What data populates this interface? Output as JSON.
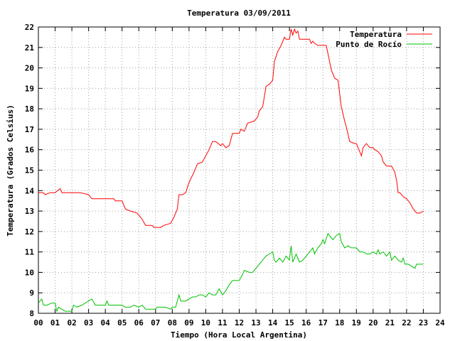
{
  "chart_data": {
    "type": "line",
    "title": "Temperatura 03/09/2011",
    "xlabel": "Tiempo (Hora Local Argentina)",
    "ylabel": "Temperatura (Grados Celsius)",
    "xlim": [
      0,
      24
    ],
    "ylim": [
      8,
      22
    ],
    "x_ticks": [
      0,
      1,
      2,
      3,
      4,
      5,
      6,
      7,
      8,
      9,
      10,
      11,
      12,
      13,
      14,
      15,
      16,
      17,
      18,
      19,
      20,
      21,
      22,
      23,
      24
    ],
    "x_tick_labels": [
      "00",
      "01",
      "02",
      "03",
      "04",
      "05",
      "06",
      "07",
      "08",
      "09",
      "10",
      "11",
      "12",
      "13",
      "14",
      "15",
      "16",
      "17",
      "18",
      "19",
      "20",
      "21",
      "22",
      "23",
      "24"
    ],
    "y_ticks": [
      8,
      9,
      10,
      11,
      12,
      13,
      14,
      15,
      16,
      17,
      18,
      19,
      20,
      21,
      22
    ],
    "grid": true,
    "legend_position": "top-right",
    "series": [
      {
        "name": "Temperatura",
        "color": "#ff0000",
        "points": [
          [
            0.0,
            13.9
          ],
          [
            0.3,
            13.9
          ],
          [
            0.4,
            13.8
          ],
          [
            0.7,
            13.9
          ],
          [
            1.0,
            13.9
          ],
          [
            1.3,
            14.1
          ],
          [
            1.4,
            13.9
          ],
          [
            2.0,
            13.9
          ],
          [
            2.5,
            13.9
          ],
          [
            3.0,
            13.8
          ],
          [
            3.2,
            13.6
          ],
          [
            3.5,
            13.6
          ],
          [
            4.0,
            13.6
          ],
          [
            4.5,
            13.6
          ],
          [
            4.6,
            13.5
          ],
          [
            5.0,
            13.5
          ],
          [
            5.2,
            13.1
          ],
          [
            5.5,
            13.0
          ],
          [
            5.9,
            12.9
          ],
          [
            6.2,
            12.6
          ],
          [
            6.4,
            12.3
          ],
          [
            6.8,
            12.3
          ],
          [
            6.9,
            12.2
          ],
          [
            7.3,
            12.2
          ],
          [
            7.5,
            12.3
          ],
          [
            7.9,
            12.4
          ],
          [
            8.1,
            12.7
          ],
          [
            8.3,
            13.1
          ],
          [
            8.4,
            13.8
          ],
          [
            8.6,
            13.8
          ],
          [
            8.8,
            13.9
          ],
          [
            9.0,
            14.4
          ],
          [
            9.3,
            14.9
          ],
          [
            9.5,
            15.3
          ],
          [
            9.8,
            15.4
          ],
          [
            10.0,
            15.7
          ],
          [
            10.2,
            16.0
          ],
          [
            10.4,
            16.4
          ],
          [
            10.6,
            16.4
          ],
          [
            10.9,
            16.2
          ],
          [
            11.0,
            16.3
          ],
          [
            11.2,
            16.1
          ],
          [
            11.4,
            16.2
          ],
          [
            11.6,
            16.8
          ],
          [
            12.0,
            16.8
          ],
          [
            12.1,
            17.0
          ],
          [
            12.3,
            16.9
          ],
          [
            12.5,
            17.3
          ],
          [
            12.9,
            17.4
          ],
          [
            13.1,
            17.6
          ],
          [
            13.2,
            17.9
          ],
          [
            13.4,
            18.1
          ],
          [
            13.6,
            19.1
          ],
          [
            13.8,
            19.2
          ],
          [
            14.0,
            19.4
          ],
          [
            14.1,
            20.3
          ],
          [
            14.3,
            20.8
          ],
          [
            14.5,
            21.1
          ],
          [
            14.7,
            21.5
          ],
          [
            14.8,
            21.4
          ],
          [
            15.0,
            21.4
          ],
          [
            15.1,
            21.9
          ],
          [
            15.2,
            21.6
          ],
          [
            15.3,
            21.9
          ],
          [
            15.4,
            21.7
          ],
          [
            15.5,
            21.8
          ],
          [
            15.6,
            21.4
          ],
          [
            16.0,
            21.4
          ],
          [
            16.2,
            21.4
          ],
          [
            16.3,
            21.2
          ],
          [
            16.4,
            21.3
          ],
          [
            16.5,
            21.2
          ],
          [
            16.7,
            21.1
          ],
          [
            17.0,
            21.1
          ],
          [
            17.2,
            21.1
          ],
          [
            17.3,
            20.7
          ],
          [
            17.5,
            19.9
          ],
          [
            17.7,
            19.5
          ],
          [
            17.9,
            19.4
          ],
          [
            18.1,
            18.1
          ],
          [
            18.3,
            17.4
          ],
          [
            18.4,
            17.1
          ],
          [
            18.6,
            16.4
          ],
          [
            18.9,
            16.3
          ],
          [
            19.0,
            16.3
          ],
          [
            19.2,
            15.9
          ],
          [
            19.3,
            15.7
          ],
          [
            19.4,
            16.1
          ],
          [
            19.6,
            16.3
          ],
          [
            19.8,
            16.1
          ],
          [
            20.0,
            16.1
          ],
          [
            20.1,
            16.0
          ],
          [
            20.3,
            15.9
          ],
          [
            20.5,
            15.7
          ],
          [
            20.6,
            15.4
          ],
          [
            20.8,
            15.2
          ],
          [
            21.1,
            15.2
          ],
          [
            21.3,
            14.9
          ],
          [
            21.4,
            14.5
          ],
          [
            21.5,
            13.9
          ],
          [
            21.6,
            13.9
          ],
          [
            21.8,
            13.7
          ],
          [
            22.0,
            13.6
          ],
          [
            22.2,
            13.4
          ],
          [
            22.4,
            13.1
          ],
          [
            22.6,
            12.9
          ],
          [
            22.8,
            12.9
          ],
          [
            23.0,
            13.0
          ]
        ]
      },
      {
        "name": "Punto de Rocío",
        "color": "#00c000",
        "points": [
          [
            0.0,
            8.5
          ],
          [
            0.2,
            8.7
          ],
          [
            0.3,
            8.4
          ],
          [
            0.5,
            8.4
          ],
          [
            0.8,
            8.5
          ],
          [
            1.0,
            8.5
          ],
          [
            1.1,
            8.1
          ],
          [
            1.2,
            8.3
          ],
          [
            1.4,
            8.2
          ],
          [
            1.6,
            8.1
          ],
          [
            1.8,
            8.1
          ],
          [
            2.0,
            8.1
          ],
          [
            2.1,
            8.4
          ],
          [
            2.3,
            8.3
          ],
          [
            2.6,
            8.4
          ],
          [
            2.8,
            8.5
          ],
          [
            3.0,
            8.6
          ],
          [
            3.2,
            8.7
          ],
          [
            3.4,
            8.4
          ],
          [
            3.6,
            8.4
          ],
          [
            3.8,
            8.4
          ],
          [
            4.0,
            8.4
          ],
          [
            4.1,
            8.6
          ],
          [
            4.2,
            8.4
          ],
          [
            4.5,
            8.4
          ],
          [
            4.7,
            8.4
          ],
          [
            5.0,
            8.4
          ],
          [
            5.2,
            8.3
          ],
          [
            5.5,
            8.3
          ],
          [
            5.7,
            8.4
          ],
          [
            6.0,
            8.3
          ],
          [
            6.2,
            8.4
          ],
          [
            6.4,
            8.2
          ],
          [
            6.7,
            8.2
          ],
          [
            7.0,
            8.2
          ],
          [
            7.1,
            8.3
          ],
          [
            7.4,
            8.3
          ],
          [
            7.6,
            8.3
          ],
          [
            7.9,
            8.2
          ],
          [
            8.0,
            8.3
          ],
          [
            8.2,
            8.3
          ],
          [
            8.4,
            8.9
          ],
          [
            8.5,
            8.6
          ],
          [
            8.8,
            8.6
          ],
          [
            9.0,
            8.7
          ],
          [
            9.2,
            8.8
          ],
          [
            9.4,
            8.8
          ],
          [
            9.6,
            8.9
          ],
          [
            9.8,
            8.9
          ],
          [
            10.0,
            8.8
          ],
          [
            10.2,
            9.0
          ],
          [
            10.4,
            8.9
          ],
          [
            10.6,
            8.9
          ],
          [
            10.8,
            9.2
          ],
          [
            11.0,
            8.9
          ],
          [
            11.2,
            9.1
          ],
          [
            11.4,
            9.4
          ],
          [
            11.6,
            9.6
          ],
          [
            11.8,
            9.6
          ],
          [
            12.0,
            9.6
          ],
          [
            12.2,
            9.9
          ],
          [
            12.3,
            10.1
          ],
          [
            12.6,
            10.0
          ],
          [
            12.8,
            10.0
          ],
          [
            13.0,
            10.2
          ],
          [
            13.2,
            10.4
          ],
          [
            13.4,
            10.6
          ],
          [
            13.6,
            10.8
          ],
          [
            13.8,
            10.9
          ],
          [
            14.0,
            11.0
          ],
          [
            14.1,
            10.6
          ],
          [
            14.2,
            10.5
          ],
          [
            14.4,
            10.7
          ],
          [
            14.6,
            10.5
          ],
          [
            14.8,
            10.8
          ],
          [
            15.0,
            10.6
          ],
          [
            15.1,
            11.3
          ],
          [
            15.2,
            10.5
          ],
          [
            15.4,
            10.9
          ],
          [
            15.6,
            10.5
          ],
          [
            15.8,
            10.6
          ],
          [
            16.0,
            10.8
          ],
          [
            16.2,
            11.0
          ],
          [
            16.4,
            11.2
          ],
          [
            16.5,
            10.9
          ],
          [
            16.7,
            11.2
          ],
          [
            16.9,
            11.4
          ],
          [
            17.0,
            11.6
          ],
          [
            17.1,
            11.4
          ],
          [
            17.3,
            11.9
          ],
          [
            17.5,
            11.7
          ],
          [
            17.6,
            11.6
          ],
          [
            17.8,
            11.8
          ],
          [
            18.0,
            11.9
          ],
          [
            18.1,
            11.5
          ],
          [
            18.3,
            11.2
          ],
          [
            18.5,
            11.3
          ],
          [
            18.7,
            11.2
          ],
          [
            19.0,
            11.2
          ],
          [
            19.2,
            11.0
          ],
          [
            19.4,
            11.0
          ],
          [
            19.6,
            10.9
          ],
          [
            19.8,
            10.9
          ],
          [
            20.0,
            11.0
          ],
          [
            20.2,
            10.9
          ],
          [
            20.3,
            11.1
          ],
          [
            20.4,
            10.9
          ],
          [
            20.6,
            11.0
          ],
          [
            20.8,
            10.8
          ],
          [
            21.0,
            11.0
          ],
          [
            21.1,
            10.6
          ],
          [
            21.3,
            10.8
          ],
          [
            21.5,
            10.6
          ],
          [
            21.7,
            10.5
          ],
          [
            21.8,
            10.7
          ],
          [
            21.9,
            10.4
          ],
          [
            22.1,
            10.4
          ],
          [
            22.3,
            10.3
          ],
          [
            22.5,
            10.2
          ],
          [
            22.6,
            10.4
          ],
          [
            22.8,
            10.4
          ],
          [
            23.0,
            10.4
          ]
        ]
      }
    ]
  }
}
